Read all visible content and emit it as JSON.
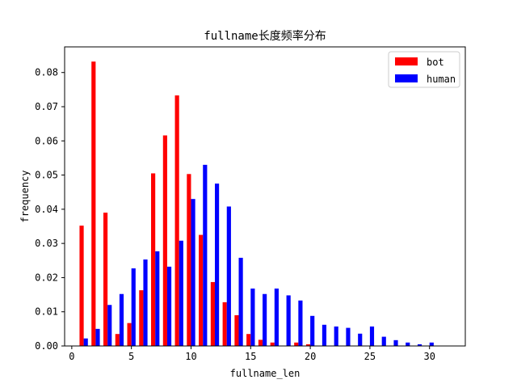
{
  "chart_data": {
    "type": "bar",
    "title": "fullname长度频率分布",
    "xlabel": "fullname_len",
    "ylabel": "frequency",
    "xlim": [
      -0.6,
      33.0
    ],
    "ylim": [
      0,
      0.0875
    ],
    "xticks": [
      0,
      5,
      10,
      15,
      20,
      25,
      30
    ],
    "yticks": [
      0.0,
      0.01,
      0.02,
      0.03,
      0.04,
      0.05,
      0.06,
      0.07,
      0.08
    ],
    "ytick_labels": [
      "0.00",
      "0.01",
      "0.02",
      "0.03",
      "0.04",
      "0.05",
      "0.06",
      "0.07",
      "0.08"
    ],
    "grid": false,
    "legend": {
      "placement": "top-right"
    },
    "series": [
      {
        "name": "bot",
        "color": "#ff0000",
        "x": [
          1,
          2,
          3,
          4,
          5,
          6,
          7,
          8,
          9,
          10,
          11,
          12,
          13,
          14,
          15,
          16,
          17,
          18,
          19,
          20,
          21,
          22,
          23,
          24,
          25,
          26,
          27,
          28,
          29,
          30,
          31
        ],
        "values": [
          0.0352,
          0.0832,
          0.039,
          0.0035,
          0.0067,
          0.0163,
          0.0505,
          0.0616,
          0.0733,
          0.0503,
          0.0325,
          0.0187,
          0.0128,
          0.009,
          0.0035,
          0.0018,
          0.001,
          0.0,
          0.001,
          0.0005,
          0.0,
          0.0,
          0.0,
          0.0,
          0.0,
          0.0,
          0.0,
          0.0,
          0.0,
          0.0,
          0.0
        ]
      },
      {
        "name": "human",
        "color": "#0000ff",
        "x": [
          1,
          2,
          3,
          4,
          5,
          6,
          7,
          8,
          9,
          10,
          11,
          12,
          13,
          14,
          15,
          16,
          17,
          18,
          19,
          20,
          21,
          22,
          23,
          24,
          25,
          26,
          27,
          28,
          29,
          30,
          31
        ],
        "values": [
          0.0022,
          0.005,
          0.012,
          0.0152,
          0.0227,
          0.0253,
          0.0277,
          0.0232,
          0.0308,
          0.043,
          0.053,
          0.0475,
          0.0408,
          0.0258,
          0.0168,
          0.0152,
          0.0168,
          0.0148,
          0.0133,
          0.0088,
          0.0062,
          0.0057,
          0.0053,
          0.0036,
          0.0057,
          0.0027,
          0.0017,
          0.001,
          0.0005,
          0.001,
          0.0
        ]
      }
    ]
  }
}
